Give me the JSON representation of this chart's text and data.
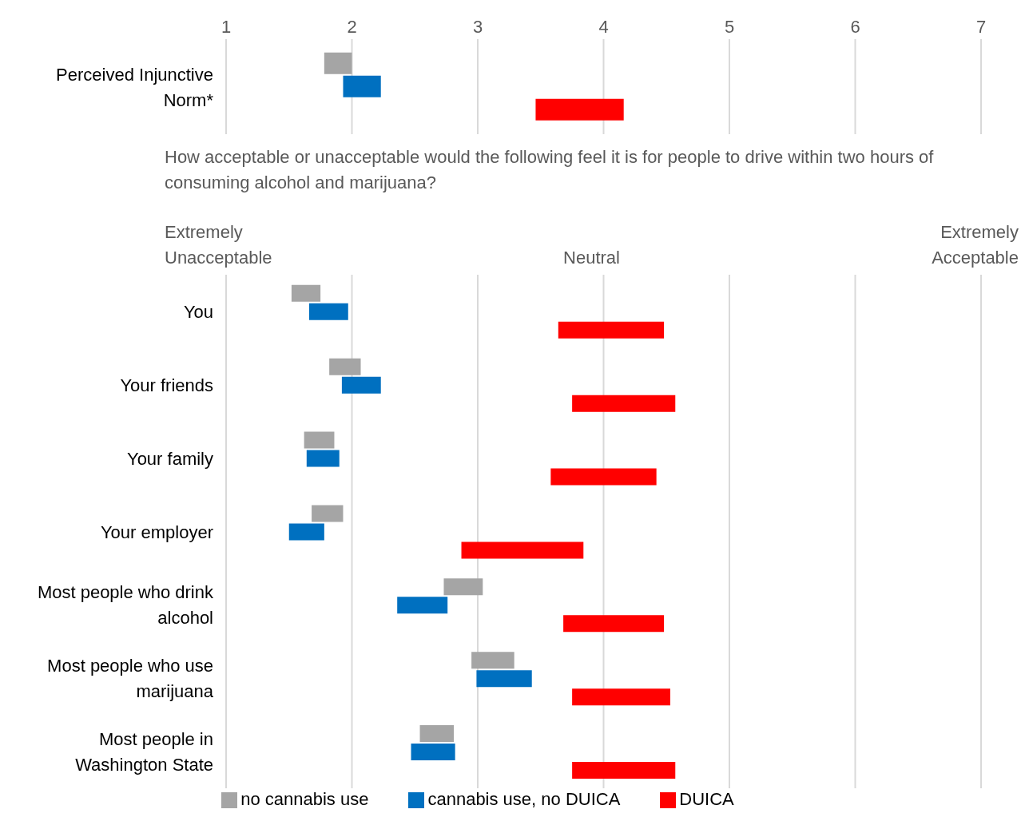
{
  "chart_data": [
    {
      "type": "bar",
      "orientation": "horizontal",
      "categories": [
        "Perceived Injunctive Norm*"
      ],
      "xlim": [
        1,
        7
      ],
      "xticks": [
        1,
        2,
        3,
        4,
        5,
        6,
        7
      ],
      "grid": "x",
      "series": [
        {
          "color": "#a5a5a5",
          "base": [
            1.78
          ],
          "values": [
            0.22
          ]
        },
        {
          "color": "#0070c0",
          "base": [
            1.93
          ],
          "values": [
            0.3
          ]
        },
        {
          "color": "#ff0000",
          "base": [
            3.46
          ],
          "values": [
            0.7
          ]
        }
      ]
    },
    {
      "type": "bar",
      "orientation": "horizontal",
      "title": "How acceptable or unacceptable would the following feel it is for people to drive within two hours of consuming alcohol and marijuana?",
      "annotations": [
        "Extremely Unacceptable",
        "Neutral",
        "Extremely Acceptable"
      ],
      "categories": [
        "You",
        "Your friends",
        "Your family",
        "Your employer",
        "Most people who drink alcohol",
        "Most people who use marijuana",
        "Most people in Washington State"
      ],
      "xlim": [
        1,
        7
      ],
      "xticks": [
        1,
        2,
        3,
        4,
        5,
        6,
        7
      ],
      "tick_labels": "y",
      "grid": "x",
      "legend": "bottom",
      "series": [
        {
          "name": "no cannabis use",
          "color": "#a5a5a5",
          "base": [
            1.52,
            1.82,
            1.62,
            1.68,
            2.73,
            2.95,
            2.54
          ],
          "values": [
            0.23,
            0.25,
            0.24,
            0.25,
            0.31,
            0.34,
            0.27
          ]
        },
        {
          "name": "cannabis use, no DUICA",
          "color": "#0070c0",
          "base": [
            1.66,
            1.92,
            1.64,
            1.5,
            2.36,
            2.99,
            2.47
          ],
          "values": [
            0.31,
            0.31,
            0.26,
            0.28,
            0.4,
            0.44,
            0.35
          ]
        },
        {
          "name": "DUICA",
          "color": "#ff0000",
          "base": [
            3.64,
            3.75,
            3.58,
            2.87,
            3.68,
            3.75,
            3.75
          ],
          "values": [
            0.84,
            0.82,
            0.84,
            0.97,
            0.8,
            0.78,
            0.82
          ]
        }
      ]
    }
  ]
}
